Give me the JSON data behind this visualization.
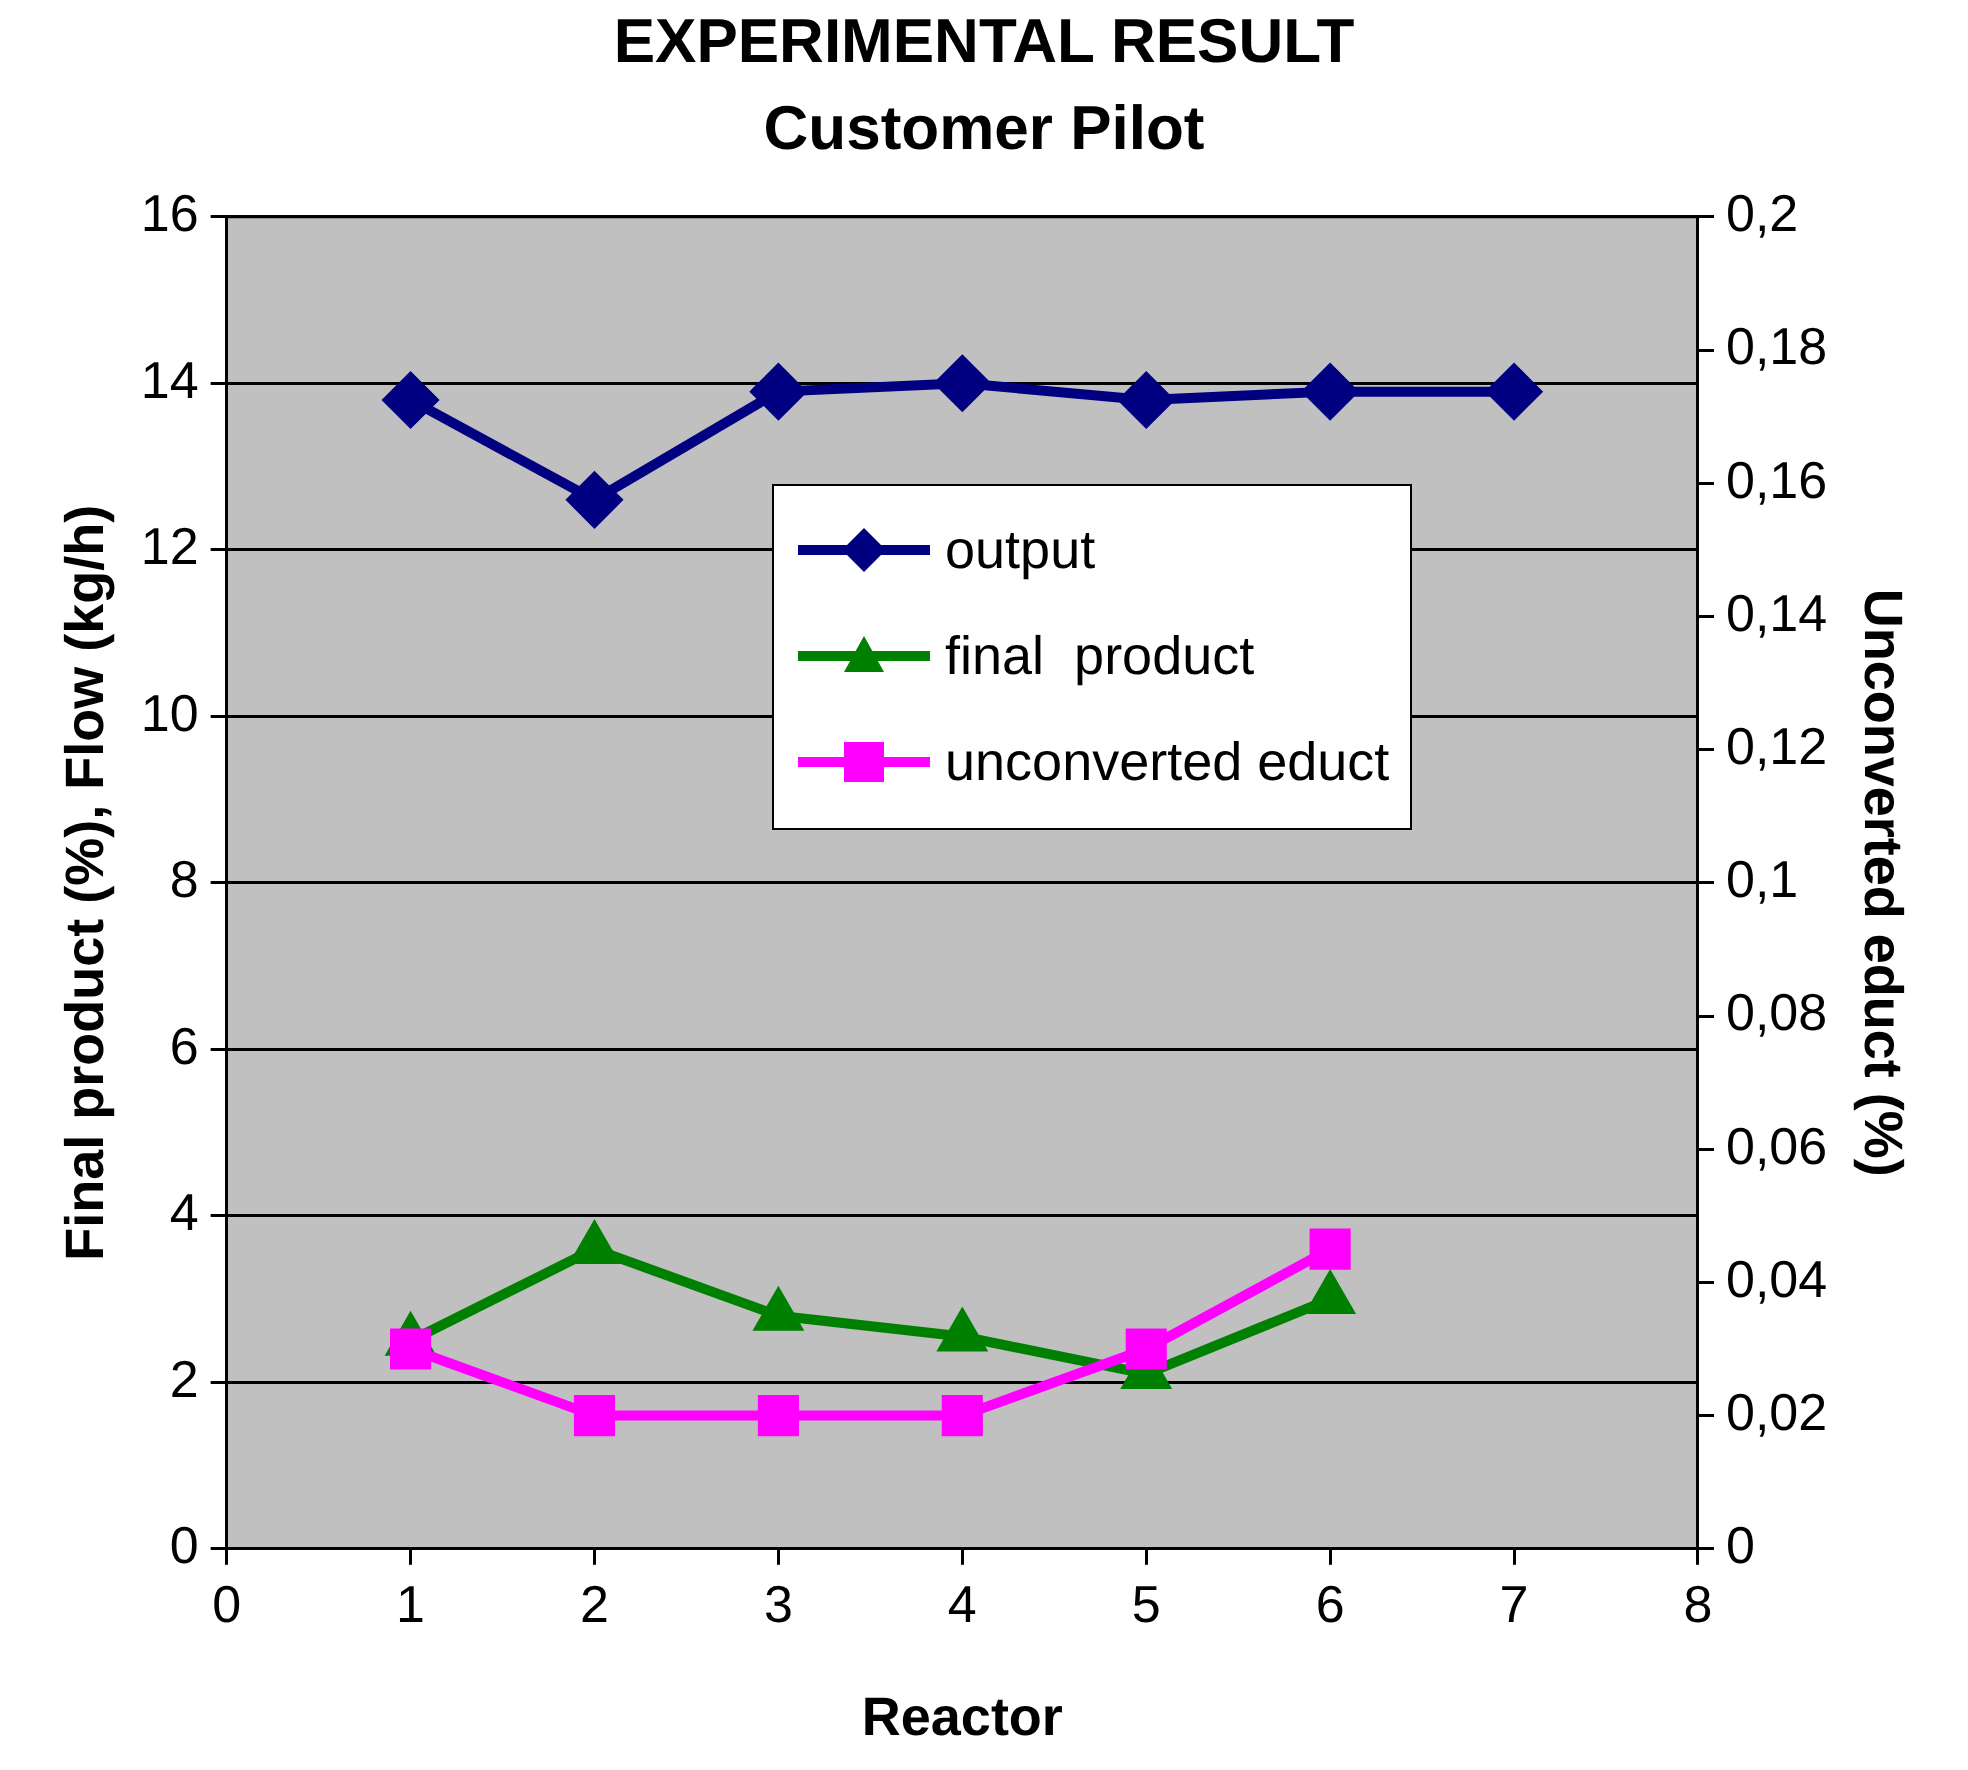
{
  "chart_data": {
    "type": "line",
    "title": "EXPERIMENTAL RESULT",
    "subtitle": "Customer Pilot",
    "xlabel": "Reactor",
    "ylabel": "Final product (%), Flow (kg/h)",
    "y2label": "Unconverted educt (%)",
    "x": [
      1,
      2,
      3,
      4,
      5,
      6,
      7
    ],
    "series": [
      {
        "name": "output",
        "color": "#000080",
        "marker": "diamond",
        "values": [
          13.8,
          12.6,
          13.9,
          14.0,
          13.8,
          13.9,
          13.9
        ]
      },
      {
        "name": "final  product",
        "color": "#008000",
        "marker": "triangle",
        "values": [
          2.5,
          3.6,
          2.8,
          2.55,
          2.1,
          3.0,
          null
        ]
      },
      {
        "name": "unconverted educt",
        "color": "#ff00ff",
        "marker": "square",
        "axis": "y2",
        "values": [
          0.03,
          0.02,
          0.02,
          0.02,
          0.03,
          0.045,
          null
        ]
      }
    ],
    "xlim": [
      0,
      8
    ],
    "xticks": [
      0,
      1,
      2,
      3,
      4,
      5,
      6,
      7,
      8
    ],
    "ylim": [
      0,
      16
    ],
    "yticks": [
      0,
      2,
      4,
      6,
      8,
      10,
      12,
      14,
      16
    ],
    "y2lim": [
      0,
      0.2
    ],
    "y2ticks": [
      0,
      {
        "value": 0.02,
        "label": "0,02"
      },
      {
        "value": 0.04,
        "label": "0,04"
      },
      {
        "value": 0.06,
        "label": "0,06"
      },
      {
        "value": 0.08,
        "label": "0,08"
      },
      {
        "value": 0.1,
        "label": "0,1"
      },
      {
        "value": 0.12,
        "label": "0,12"
      },
      {
        "value": 0.14,
        "label": "0,14"
      },
      {
        "value": 0.16,
        "label": "0,16"
      },
      {
        "value": 0.18,
        "label": "0,18"
      },
      {
        "value": 0.2,
        "label": "0,2"
      }
    ],
    "grid": "y",
    "legend": "top",
    "line_style": "solid"
  }
}
